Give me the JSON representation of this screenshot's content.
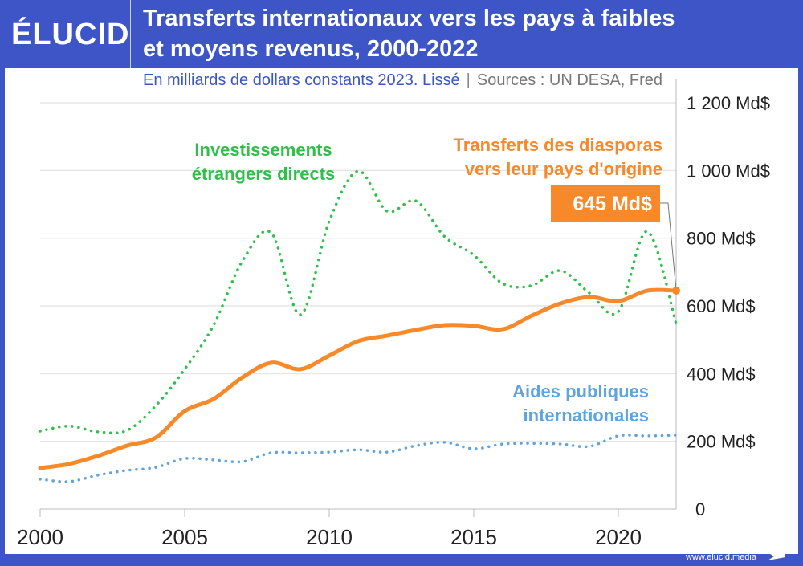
{
  "brand": {
    "logo": "ÉLUCID",
    "url": "www.elucid.media",
    "color": "#3d55c6"
  },
  "header": {
    "title_line1": "Transferts internationaux vers les pays à faibles",
    "title_line2": "et moyens revenus, 2000-2022",
    "subtitle": "En milliards de dollars constants 2023. Lissé",
    "separator": "|",
    "sources": "Sources : UN DESA, Fred"
  },
  "chart_data": {
    "type": "line",
    "title": "Transferts internationaux vers les pays à faibles et moyens revenus, 2000-2022",
    "x": [
      2000,
      2001,
      2002,
      2003,
      2004,
      2005,
      2006,
      2007,
      2008,
      2009,
      2010,
      2011,
      2012,
      2013,
      2014,
      2015,
      2016,
      2017,
      2018,
      2019,
      2020,
      2021,
      2022
    ],
    "xlim": [
      2000,
      2022
    ],
    "ylim": [
      0,
      1200
    ],
    "x_ticks": [
      2000,
      2005,
      2010,
      2015,
      2020
    ],
    "y_ticks": [
      {
        "value": 0,
        "label": "0"
      },
      {
        "value": 200,
        "label": "200 Md$"
      },
      {
        "value": 400,
        "label": "400 Md$"
      },
      {
        "value": 600,
        "label": "600 Md$"
      },
      {
        "value": 800,
        "label": "800 Md$"
      },
      {
        "value": 1000,
        "label": "1 000 Md$"
      },
      {
        "value": 1200,
        "label": "1 200 Md$"
      }
    ],
    "grid": "horizontal",
    "series": [
      {
        "name": "Investissements étrangers directs",
        "label_lines": [
          "Investissements",
          "étrangers directs"
        ],
        "color": "#2fbf4a",
        "style": "dotted",
        "values": [
          230,
          245,
          228,
          232,
          305,
          413,
          543,
          733,
          815,
          574,
          850,
          998,
          880,
          910,
          804,
          750,
          666,
          660,
          704,
          638,
          583,
          820,
          548
        ]
      },
      {
        "name": "Transferts des diasporas vers leur pays d'origine",
        "label_lines": [
          "Transferts des diasporas",
          "vers leur pays d'origine"
        ],
        "color": "#f7892a",
        "style": "solid",
        "values": [
          121,
          133,
          157,
          187,
          211,
          289,
          325,
          389,
          432,
          413,
          453,
          496,
          512,
          529,
          543,
          541,
          531,
          571,
          607,
          626,
          614,
          645,
          645
        ]
      },
      {
        "name": "Aides publiques internationales",
        "label_lines": [
          "Aides publiques",
          "internationales"
        ],
        "color": "#5fa3e0",
        "style": "dotted",
        "values": [
          88,
          81,
          100,
          114,
          123,
          149,
          145,
          140,
          166,
          166,
          168,
          175,
          168,
          187,
          197,
          178,
          192,
          194,
          192,
          185,
          216,
          216,
          218
        ]
      }
    ],
    "annotations": [
      {
        "text": "645 Md$",
        "x": 2022,
        "y": 645,
        "series": "Transferts des diasporas vers leur pays d'origine"
      }
    ]
  }
}
